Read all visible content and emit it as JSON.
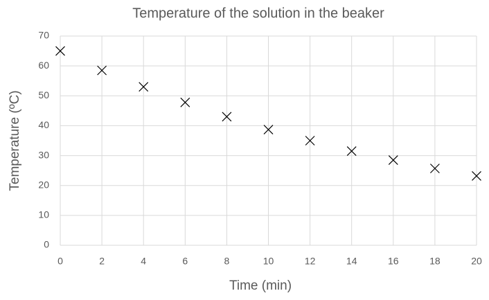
{
  "chart_data": {
    "type": "scatter",
    "title": "Temperature of the solution in the beaker",
    "x_label": "Time (min)",
    "y_label": "Temperature (ºC)",
    "series": [
      {
        "color": "#000000",
        "marker": "x",
        "x": [
          0,
          2,
          4,
          6,
          8,
          10,
          12,
          14,
          16,
          18,
          20
        ],
        "values": [
          65,
          58.5,
          53,
          47.8,
          43,
          38.7,
          35,
          31.5,
          28.5,
          25.7,
          23.2
        ]
      }
    ],
    "xlim": [
      0,
      20
    ],
    "xticks": [
      0,
      2,
      4,
      6,
      8,
      10,
      12,
      14,
      16,
      18,
      20
    ],
    "ylim": [
      0,
      70
    ],
    "yticks": [
      0,
      10,
      20,
      30,
      40,
      50,
      60,
      70
    ],
    "grid": true
  }
}
